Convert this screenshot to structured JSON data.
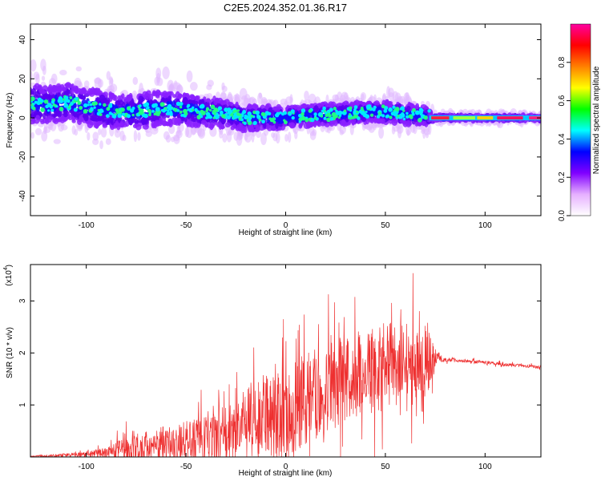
{
  "title": "C2E5.2024.352.01.36.R17",
  "chart_data": [
    {
      "type": "heatmap",
      "xlabel": "Height of straight line (km)",
      "ylabel": "Frequency (Hz)",
      "xlim": [
        -128,
        128
      ],
      "ylim": [
        -50,
        48
      ],
      "xticks": [
        -100,
        -50,
        0,
        50,
        100
      ],
      "yticks": [
        -40,
        -20,
        0,
        20,
        40
      ],
      "colorbar": {
        "label": "Normalized spectral amplitude",
        "range": [
          0,
          1
        ],
        "ticks": [
          "0.0",
          "0.2",
          "0.4",
          "0.6",
          "0.8"
        ],
        "colors": [
          "#ffffff",
          "#e6b0ff",
          "#8000ff",
          "#0000ff",
          "#00ffff",
          "#00ff00",
          "#ffff00",
          "#ff8000",
          "#ff0000",
          "#ff00a0"
        ]
      },
      "ridge": {
        "x": [
          -128,
          -120,
          -110,
          -100,
          -90,
          -80,
          -70,
          -60,
          -50,
          -40,
          -30,
          -20,
          -10,
          0,
          10,
          20,
          30,
          40,
          50,
          60,
          70,
          75,
          80,
          100,
          120,
          128
        ],
        "y": [
          8,
          6,
          8,
          6,
          4,
          3,
          4,
          5,
          4,
          3,
          2,
          0,
          0,
          0,
          1,
          2,
          2,
          3,
          3,
          2,
          1,
          0,
          0,
          0,
          0,
          0
        ],
        "spread": [
          10,
          9,
          9,
          9,
          9,
          8,
          9,
          8,
          8,
          7,
          7,
          6,
          6,
          5,
          5,
          5,
          5,
          5,
          5,
          5,
          5,
          1,
          1,
          1,
          1,
          1
        ]
      },
      "grid": false
    },
    {
      "type": "line",
      "xlabel": "Height of straight line (km)",
      "ylabel": "SNR (10 * v/v)",
      "yscale_label": "(x10",
      "yscale_exponent": "4",
      "ylabel_close": ")",
      "xlim": [
        -128,
        128
      ],
      "ylim": [
        0,
        3.7
      ],
      "xticks": [
        -100,
        -50,
        0,
        50,
        100
      ],
      "yticks": [
        1,
        2,
        3
      ],
      "series": [
        {
          "color": "#ee3030",
          "x": [
            -128,
            -100,
            -90,
            -80,
            -70,
            -60,
            -50,
            -40,
            -30,
            -20,
            -10,
            0,
            10,
            20,
            30,
            40,
            50,
            60,
            70,
            76,
            80,
            90,
            100,
            110,
            120,
            128
          ],
          "mean": [
            0.01,
            0.05,
            0.08,
            0.15,
            0.2,
            0.25,
            0.3,
            0.35,
            0.45,
            0.6,
            0.75,
            0.9,
            1.1,
            1.3,
            1.5,
            1.65,
            1.75,
            1.8,
            1.8,
            1.9,
            1.87,
            1.85,
            1.82,
            1.78,
            1.75,
            1.72
          ],
          "noise": [
            0.01,
            0.05,
            0.1,
            0.25,
            0.3,
            0.35,
            0.4,
            0.45,
            0.55,
            0.7,
            0.8,
            0.9,
            0.9,
            0.85,
            0.85,
            0.85,
            0.85,
            0.8,
            0.8,
            0.1,
            0.04,
            0.03,
            0.03,
            0.03,
            0.03,
            0.03
          ]
        }
      ],
      "grid": false
    }
  ]
}
